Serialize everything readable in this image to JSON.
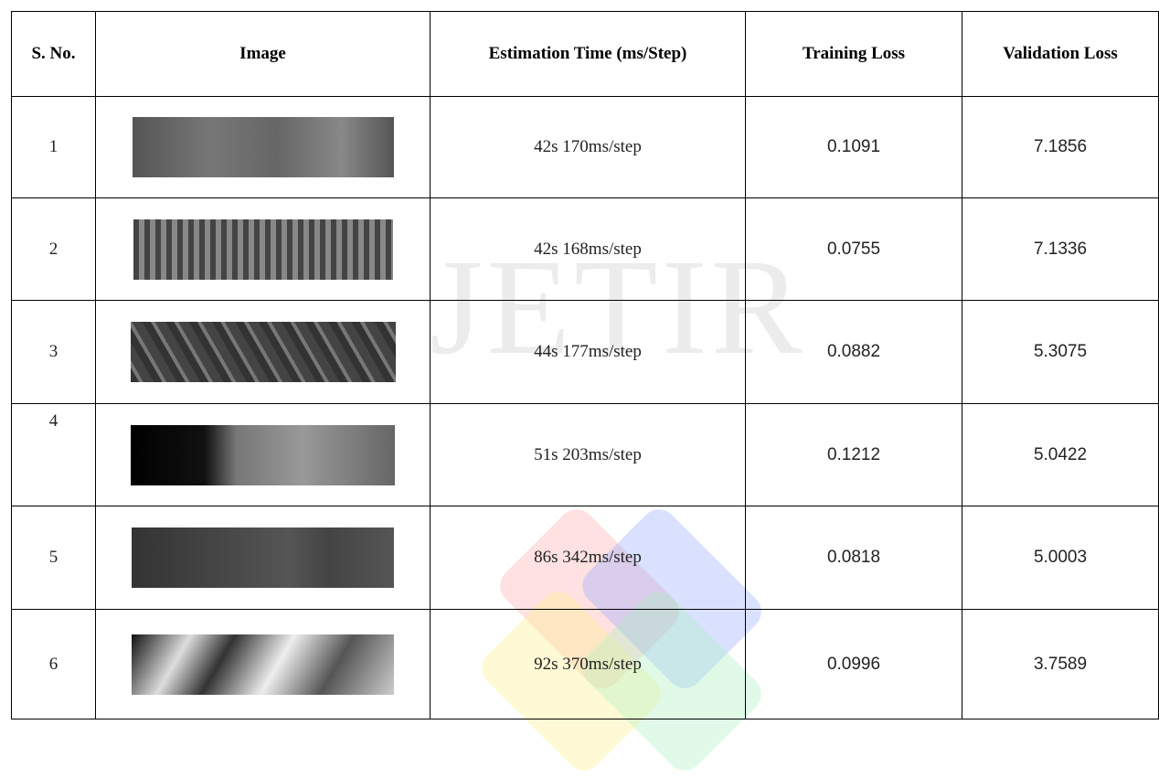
{
  "watermark": "JETIR",
  "table": {
    "header": [
      "S. No.",
      "Image",
      "Estimation Time (ms/Step)",
      "Training Loss",
      "Validation Loss"
    ],
    "rows": [
      [
        "1",
        "42s 170ms/step",
        "0.1091",
        "7.1856"
      ],
      [
        "2",
        "42s 168ms/step",
        "0.0755",
        "7.1336"
      ],
      [
        "3",
        "44s 177ms/step",
        "0.0882",
        "5.3075"
      ],
      [
        "4",
        "51s 203ms/step",
        "0.1212",
        "5.0422"
      ],
      [
        "5",
        "86s 342ms/step",
        "0.0818",
        "5.0003"
      ],
      [
        "6",
        "92s 370ms/step",
        "0.0996",
        "3.7589"
      ]
    ]
  }
}
